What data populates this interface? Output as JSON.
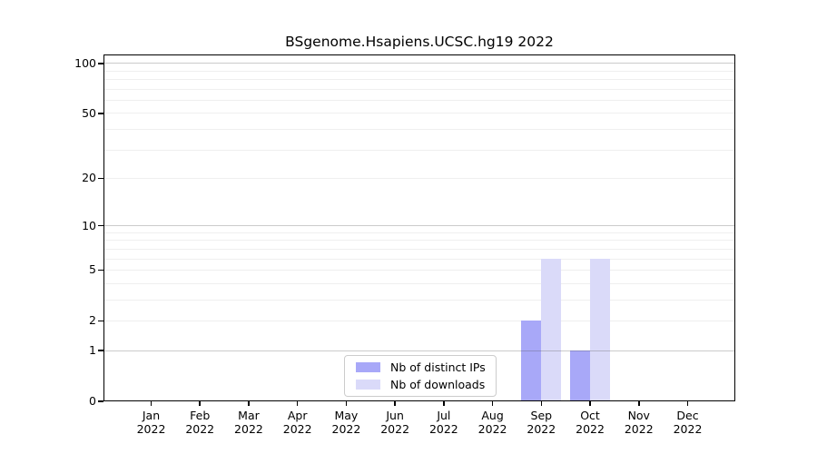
{
  "chart_data": {
    "type": "bar",
    "title": "BSgenome.Hsapiens.UCSC.hg19 2022",
    "categories": [
      "Jan",
      "Feb",
      "Mar",
      "Apr",
      "May",
      "Jun",
      "Jul",
      "Aug",
      "Sep",
      "Oct",
      "Nov",
      "Dec"
    ],
    "x_year": "2022",
    "series": [
      {
        "name": "Nb of distinct IPs",
        "color": "#a8a8f8",
        "values": [
          0,
          0,
          0,
          0,
          0,
          0,
          0,
          0,
          2,
          1,
          0,
          0
        ]
      },
      {
        "name": "Nb of downloads",
        "color": "#dadaf9",
        "values": [
          0,
          0,
          0,
          0,
          0,
          0,
          0,
          0,
          6,
          6,
          0,
          0
        ]
      }
    ],
    "yscale": "log1p",
    "ylim": [
      0,
      113
    ],
    "yticks": [
      0,
      1,
      2,
      5,
      10,
      20,
      50,
      100
    ],
    "grid": {
      "major": [
        1,
        10,
        100
      ],
      "minor": [
        2,
        3,
        4,
        5,
        6,
        7,
        8,
        9,
        20,
        30,
        40,
        50,
        60,
        70,
        80,
        90
      ]
    },
    "legend_position": "lower center",
    "axis_color": "#000000",
    "minor_grid_color": "#efefef",
    "major_grid_color": "#c6c6c6"
  }
}
